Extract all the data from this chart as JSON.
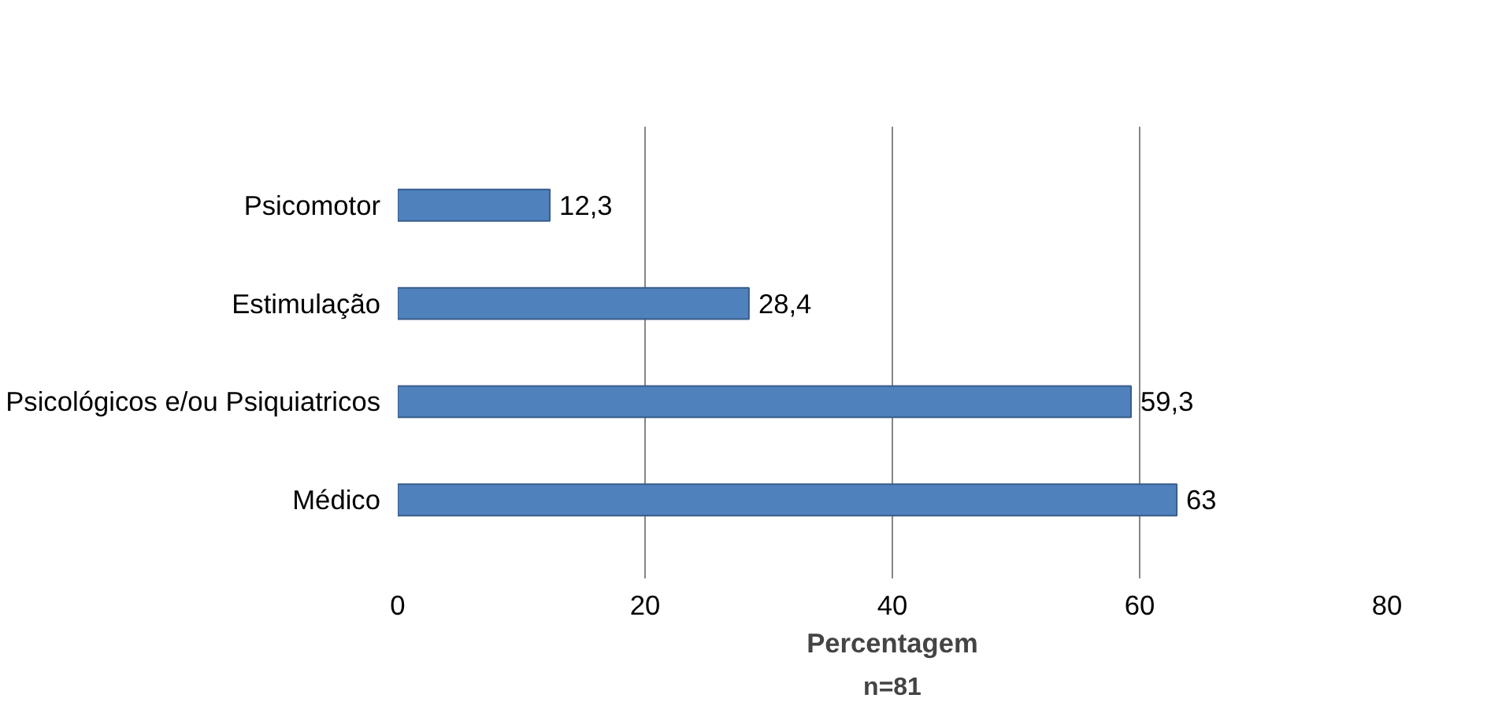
{
  "chart_data": {
    "type": "bar",
    "orientation": "horizontal",
    "xlabel": "Percentagem",
    "categories": [
      "Psicomotor",
      "Estimulação",
      "Psicológicos e/ou Psiquiatricos",
      "Médico"
    ],
    "values": [
      12.3,
      28.4,
      59.3,
      63
    ],
    "value_labels": [
      "12,3",
      "28,4",
      "59,3",
      "63"
    ],
    "color": "#4f81bd",
    "xlim": [
      0,
      80
    ],
    "xticks": [
      0,
      20,
      40,
      60,
      80
    ],
    "grid": "x",
    "annotations": [
      "n=81"
    ]
  }
}
